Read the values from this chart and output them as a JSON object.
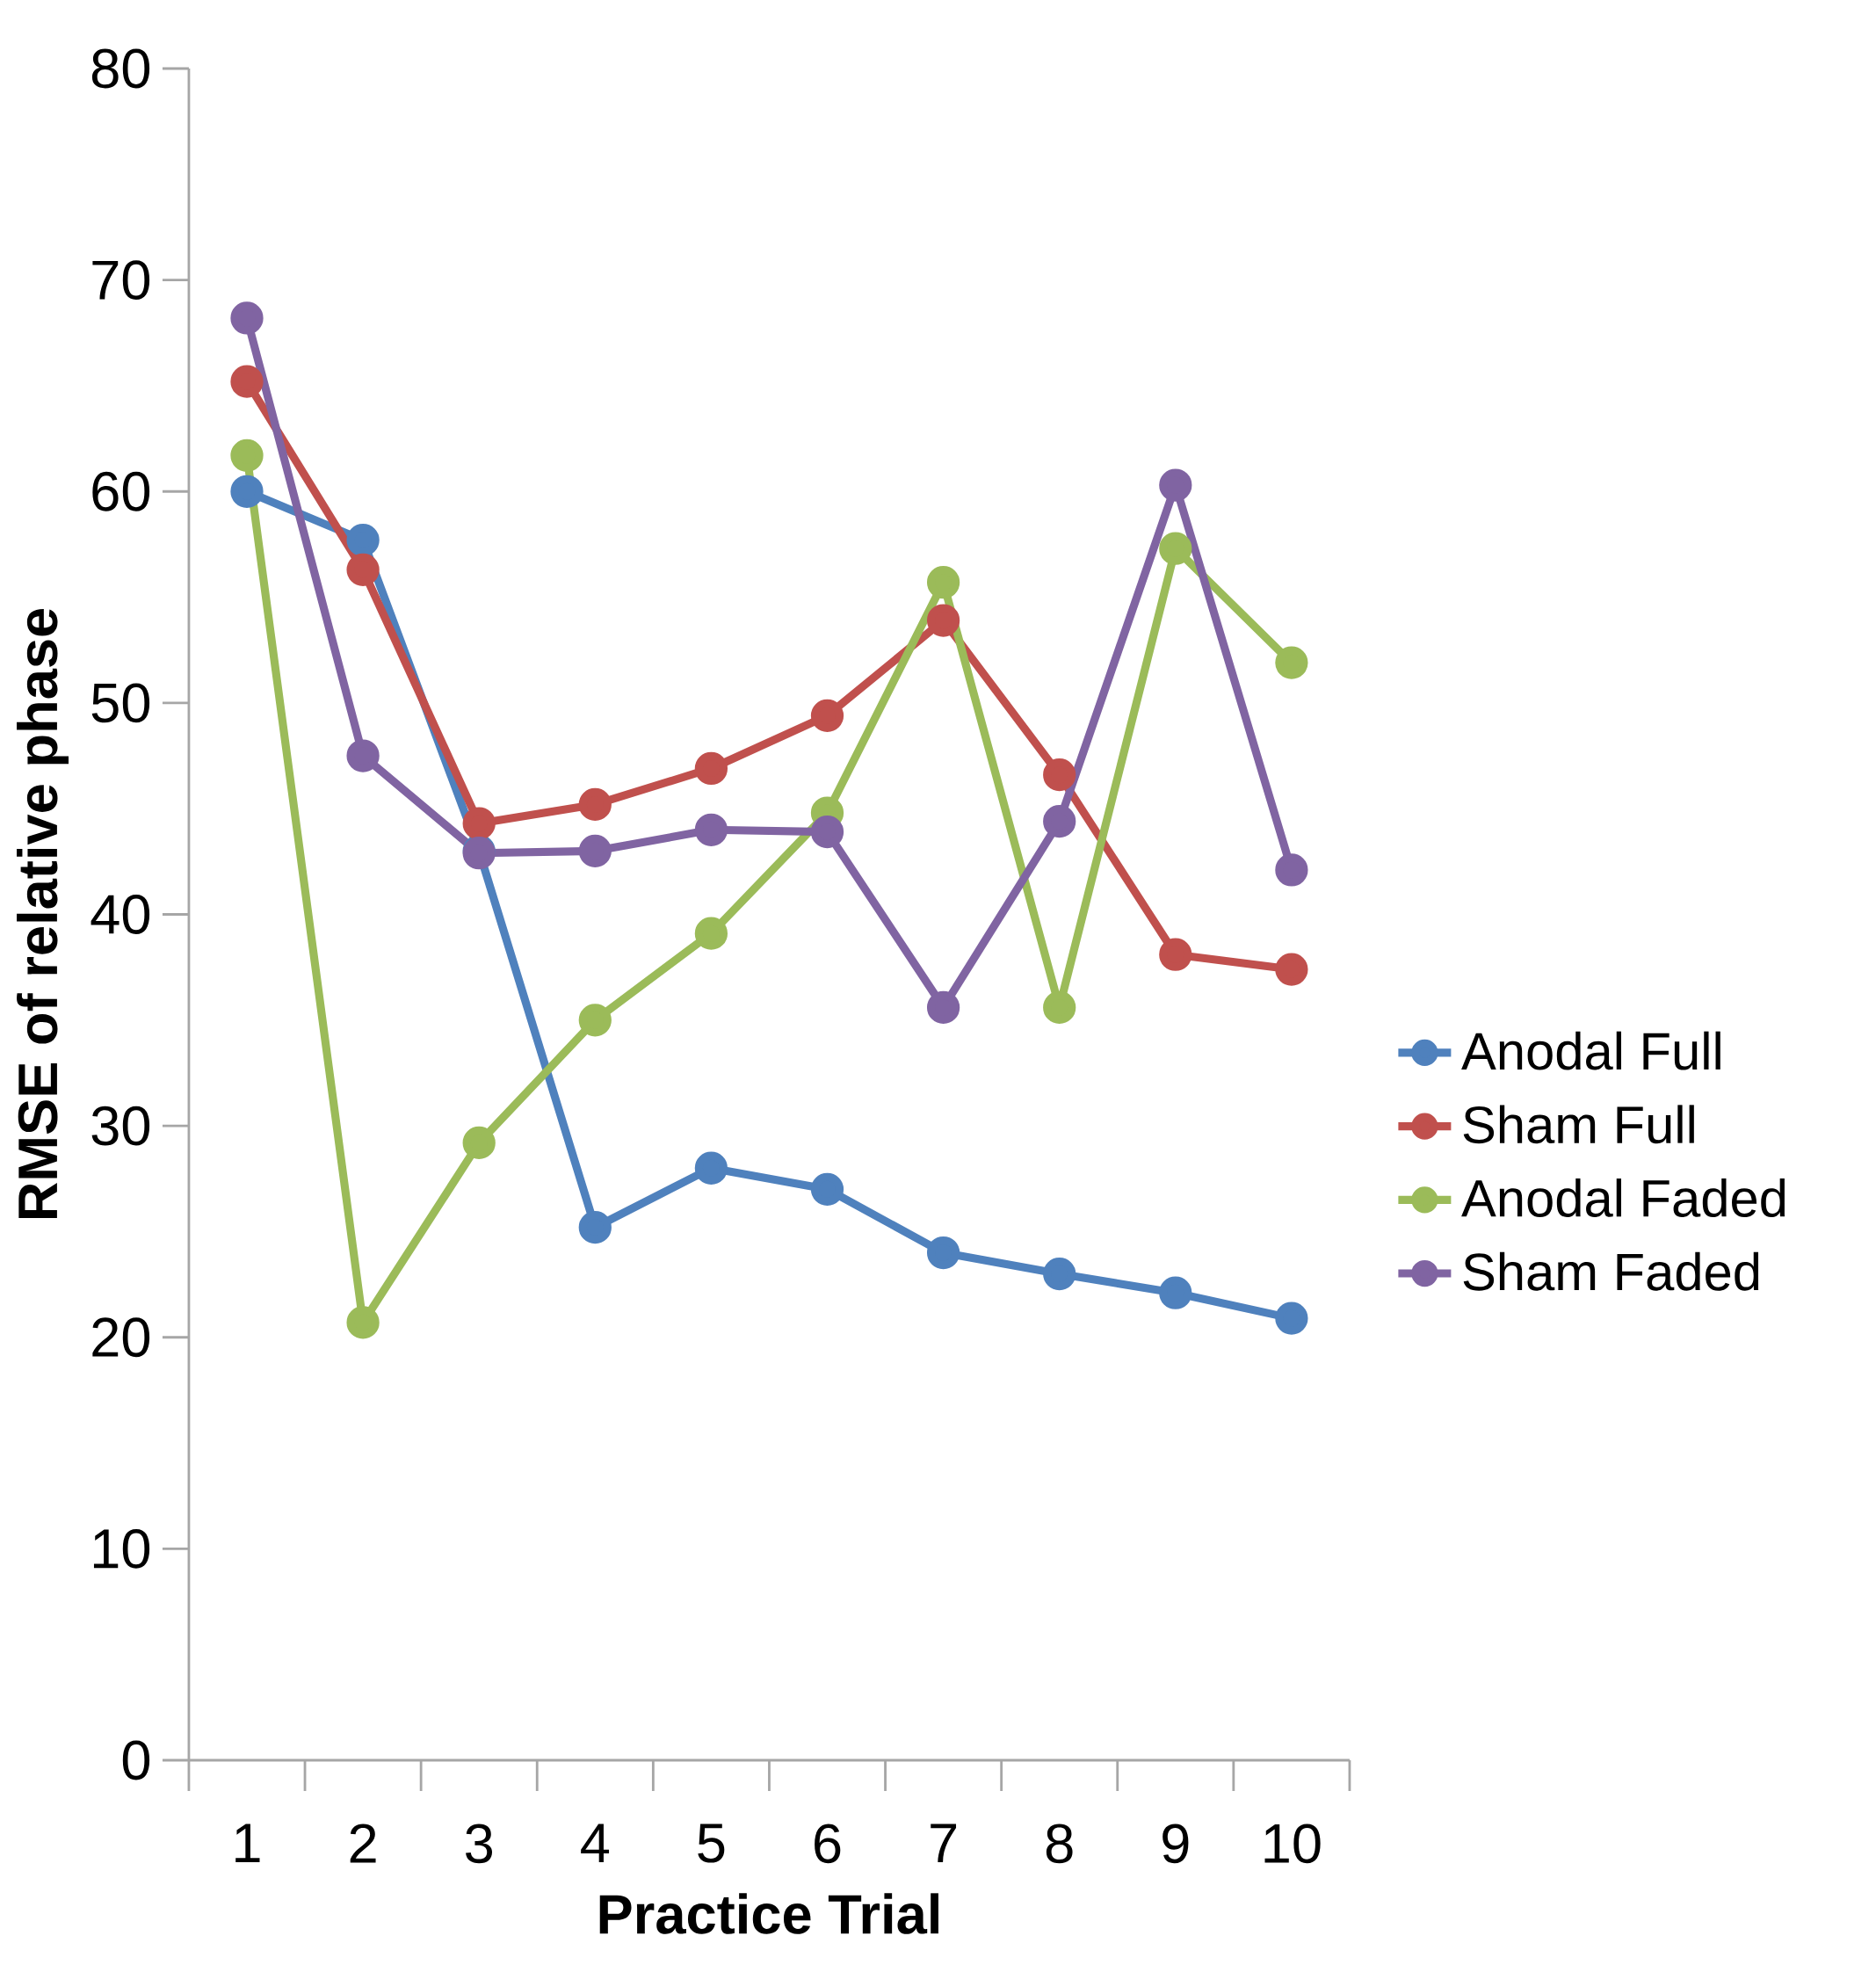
{
  "chart_data": {
    "type": "line",
    "xlabel": "Practice Trial",
    "ylabel": "RMSE of relative phase",
    "categories": [
      "1",
      "2",
      "3",
      "4",
      "5",
      "6",
      "7",
      "8",
      "9",
      "10"
    ],
    "series": [
      {
        "name": "Anodal Full",
        "color": "#4f81bd",
        "values": [
          60.0,
          57.7,
          43.0,
          25.2,
          28.0,
          27.0,
          24.0,
          23.0,
          22.1,
          20.9
        ]
      },
      {
        "name": "Sham Full",
        "color": "#c0504d",
        "values": [
          65.2,
          56.3,
          44.3,
          45.2,
          46.9,
          49.4,
          53.9,
          46.6,
          38.1,
          37.4
        ]
      },
      {
        "name": "Anodal Faded",
        "color": "#9bbb59",
        "values": [
          61.7,
          20.7,
          29.2,
          35.0,
          39.1,
          44.8,
          55.7,
          35.6,
          57.3,
          51.9
        ]
      },
      {
        "name": "Sham Faded",
        "color": "#8064a2",
        "values": [
          68.2,
          47.5,
          42.9,
          43.0,
          44.0,
          43.9,
          35.6,
          44.4,
          60.3,
          42.1
        ]
      }
    ],
    "ylim": [
      0,
      80
    ],
    "yticks": [
      0,
      10,
      20,
      30,
      40,
      50,
      60,
      70,
      80
    ],
    "grid": false,
    "legend": "right",
    "marker": "circle",
    "line_style": "solid"
  }
}
